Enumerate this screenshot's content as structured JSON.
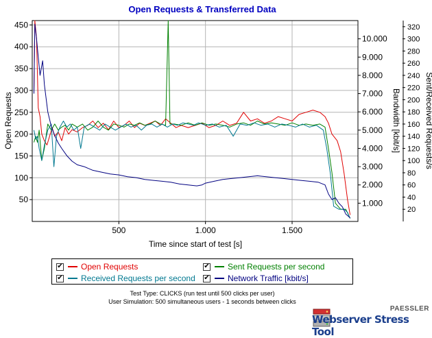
{
  "chart_data": {
    "type": "line",
    "title": "Open Requests & Transferred Data",
    "xlabel": "Time since start of test [s]",
    "ylabel_left": "Open Requests",
    "ylabel_right1": "Bandwidth [kbit/s]",
    "ylabel_right2": "Sent/Received Requests/s",
    "xlim": [
      0,
      1880
    ],
    "ylim_left": [
      0,
      460
    ],
    "ylim_right1": [
      0,
      11000
    ],
    "ylim_right2": [
      0,
      330
    ],
    "x_ticks": [
      {
        "value": 500,
        "label": "500"
      },
      {
        "value": 1000,
        "label": "1.000"
      },
      {
        "value": 1500,
        "label": "1.500"
      }
    ],
    "y_left_ticks": [
      {
        "value": 50,
        "label": "50"
      },
      {
        "value": 100,
        "label": "100"
      },
      {
        "value": 150,
        "label": "150"
      },
      {
        "value": 200,
        "label": "200"
      },
      {
        "value": 250,
        "label": "250"
      },
      {
        "value": 300,
        "label": "300"
      },
      {
        "value": 350,
        "label": "350"
      },
      {
        "value": 400,
        "label": "400"
      },
      {
        "value": 450,
        "label": "450"
      }
    ],
    "y_right1_ticks": [
      {
        "value": 1000,
        "label": "1.000"
      },
      {
        "value": 2000,
        "label": "2.000"
      },
      {
        "value": 3000,
        "label": "3.000"
      },
      {
        "value": 4000,
        "label": "4.000"
      },
      {
        "value": 5000,
        "label": "5.000"
      },
      {
        "value": 6000,
        "label": "6.000"
      },
      {
        "value": 7000,
        "label": "7.000"
      },
      {
        "value": 8000,
        "label": "8.000"
      },
      {
        "value": 9000,
        "label": "9.000"
      },
      {
        "value": 10000,
        "label": "10.000"
      }
    ],
    "y_right2_ticks": [
      {
        "value": 20,
        "label": "20"
      },
      {
        "value": 40,
        "label": "40"
      },
      {
        "value": 60,
        "label": "60"
      },
      {
        "value": 80,
        "label": "80"
      },
      {
        "value": 100,
        "label": "100"
      },
      {
        "value": 120,
        "label": "120"
      },
      {
        "value": 140,
        "label": "140"
      },
      {
        "value": 160,
        "label": "160"
      },
      {
        "value": 180,
        "label": "180"
      },
      {
        "value": 200,
        "label": "200"
      },
      {
        "value": 220,
        "label": "220"
      },
      {
        "value": 240,
        "label": "240"
      },
      {
        "value": 260,
        "label": "260"
      },
      {
        "value": 280,
        "label": "280"
      },
      {
        "value": 300,
        "label": "300"
      },
      {
        "value": 320,
        "label": "320"
      }
    ],
    "grid": true,
    "series": [
      {
        "name": "Open Requests",
        "axis": "left",
        "color": "#e00000",
        "points": [
          [
            10,
            300
          ],
          [
            15,
            460
          ],
          [
            25,
            420
          ],
          [
            35,
            260
          ],
          [
            45,
            240
          ],
          [
            55,
            200
          ],
          [
            70,
            185
          ],
          [
            85,
            175
          ],
          [
            100,
            195
          ],
          [
            115,
            215
          ],
          [
            130,
            195
          ],
          [
            150,
            205
          ],
          [
            170,
            185
          ],
          [
            190,
            215
          ],
          [
            210,
            200
          ],
          [
            230,
            210
          ],
          [
            260,
            205
          ],
          [
            290,
            215
          ],
          [
            320,
            220
          ],
          [
            350,
            230
          ],
          [
            380,
            215
          ],
          [
            410,
            225
          ],
          [
            440,
            210
          ],
          [
            470,
            230
          ],
          [
            500,
            215
          ],
          [
            530,
            220
          ],
          [
            560,
            230
          ],
          [
            590,
            215
          ],
          [
            620,
            225
          ],
          [
            650,
            220
          ],
          [
            680,
            225
          ],
          [
            710,
            230
          ],
          [
            740,
            220
          ],
          [
            770,
            235
          ],
          [
            800,
            225
          ],
          [
            830,
            215
          ],
          [
            860,
            220
          ],
          [
            900,
            215
          ],
          [
            940,
            220
          ],
          [
            980,
            225
          ],
          [
            1020,
            215
          ],
          [
            1060,
            220
          ],
          [
            1100,
            230
          ],
          [
            1140,
            220
          ],
          [
            1180,
            225
          ],
          [
            1220,
            250
          ],
          [
            1260,
            230
          ],
          [
            1300,
            235
          ],
          [
            1340,
            225
          ],
          [
            1380,
            230
          ],
          [
            1420,
            240
          ],
          [
            1460,
            235
          ],
          [
            1500,
            230
          ],
          [
            1540,
            245
          ],
          [
            1580,
            250
          ],
          [
            1620,
            255
          ],
          [
            1660,
            250
          ],
          [
            1690,
            240
          ],
          [
            1710,
            225
          ],
          [
            1730,
            200
          ],
          [
            1760,
            185
          ],
          [
            1780,
            160
          ],
          [
            1800,
            110
          ],
          [
            1820,
            50
          ],
          [
            1835,
            15
          ]
        ]
      },
      {
        "name": "Sent Requests per second",
        "axis": "right2",
        "color": "#008000",
        "points": [
          [
            10,
            130
          ],
          [
            20,
            140
          ],
          [
            30,
            130
          ],
          [
            40,
            150
          ],
          [
            55,
            100
          ],
          [
            70,
            120
          ],
          [
            90,
            160
          ],
          [
            110,
            150
          ],
          [
            130,
            160
          ],
          [
            150,
            150
          ],
          [
            170,
            155
          ],
          [
            190,
            158
          ],
          [
            210,
            150
          ],
          [
            230,
            160
          ],
          [
            260,
            155
          ],
          [
            290,
            160
          ],
          [
            320,
            150
          ],
          [
            350,
            155
          ],
          [
            380,
            165
          ],
          [
            410,
            155
          ],
          [
            440,
            150
          ],
          [
            470,
            160
          ],
          [
            500,
            158
          ],
          [
            530,
            155
          ],
          [
            560,
            160
          ],
          [
            590,
            158
          ],
          [
            620,
            162
          ],
          [
            650,
            158
          ],
          [
            680,
            160
          ],
          [
            710,
            165
          ],
          [
            740,
            160
          ],
          [
            770,
            158
          ],
          [
            785,
            330
          ],
          [
            795,
            160
          ],
          [
            820,
            160
          ],
          [
            860,
            158
          ],
          [
            900,
            162
          ],
          [
            940,
            158
          ],
          [
            980,
            162
          ],
          [
            1020,
            158
          ],
          [
            1060,
            160
          ],
          [
            1100,
            158
          ],
          [
            1140,
            155
          ],
          [
            1180,
            160
          ],
          [
            1220,
            162
          ],
          [
            1260,
            158
          ],
          [
            1300,
            165
          ],
          [
            1340,
            160
          ],
          [
            1380,
            162
          ],
          [
            1420,
            160
          ],
          [
            1460,
            158
          ],
          [
            1500,
            162
          ],
          [
            1540,
            158
          ],
          [
            1580,
            160
          ],
          [
            1620,
            158
          ],
          [
            1660,
            160
          ],
          [
            1690,
            155
          ],
          [
            1710,
            120
          ],
          [
            1730,
            80
          ],
          [
            1750,
            30
          ],
          [
            1780,
            20
          ],
          [
            1810,
            20
          ],
          [
            1835,
            5
          ]
        ]
      },
      {
        "name": "Received Requests per second",
        "axis": "right2",
        "color": "#007890",
        "points": [
          [
            10,
            150
          ],
          [
            20,
            135
          ],
          [
            30,
            140
          ],
          [
            40,
            120
          ],
          [
            55,
            100
          ],
          [
            70,
            125
          ],
          [
            90,
            150
          ],
          [
            110,
            160
          ],
          [
            125,
            90
          ],
          [
            140,
            140
          ],
          [
            160,
            155
          ],
          [
            180,
            165
          ],
          [
            200,
            155
          ],
          [
            220,
            160
          ],
          [
            240,
            150
          ],
          [
            260,
            155
          ],
          [
            280,
            120
          ],
          [
            300,
            155
          ],
          [
            330,
            160
          ],
          [
            360,
            155
          ],
          [
            390,
            150
          ],
          [
            420,
            160
          ],
          [
            450,
            155
          ],
          [
            480,
            150
          ],
          [
            510,
            155
          ],
          [
            540,
            160
          ],
          [
            570,
            155
          ],
          [
            600,
            158
          ],
          [
            630,
            150
          ],
          [
            660,
            158
          ],
          [
            690,
            160
          ],
          [
            720,
            155
          ],
          [
            750,
            160
          ],
          [
            780,
            155
          ],
          [
            810,
            160
          ],
          [
            840,
            158
          ],
          [
            870,
            162
          ],
          [
            900,
            160
          ],
          [
            930,
            158
          ],
          [
            960,
            162
          ],
          [
            1000,
            158
          ],
          [
            1040,
            160
          ],
          [
            1080,
            155
          ],
          [
            1120,
            158
          ],
          [
            1160,
            140
          ],
          [
            1200,
            160
          ],
          [
            1240,
            158
          ],
          [
            1280,
            162
          ],
          [
            1320,
            158
          ],
          [
            1360,
            160
          ],
          [
            1400,
            155
          ],
          [
            1440,
            160
          ],
          [
            1480,
            158
          ],
          [
            1520,
            155
          ],
          [
            1560,
            160
          ],
          [
            1600,
            155
          ],
          [
            1640,
            158
          ],
          [
            1680,
            150
          ],
          [
            1700,
            120
          ],
          [
            1720,
            80
          ],
          [
            1740,
            25
          ],
          [
            1770,
            20
          ],
          [
            1800,
            20
          ],
          [
            1820,
            15
          ],
          [
            1835,
            5
          ]
        ]
      },
      {
        "name": "Network Traffic [kbit/s]",
        "axis": "right1",
        "color": "#000080",
        "points": [
          [
            10,
            7000
          ],
          [
            15,
            10800
          ],
          [
            25,
            10000
          ],
          [
            35,
            9000
          ],
          [
            45,
            8000
          ],
          [
            60,
            8800
          ],
          [
            70,
            7500
          ],
          [
            90,
            6000
          ],
          [
            110,
            5200
          ],
          [
            130,
            4700
          ],
          [
            150,
            4300
          ],
          [
            170,
            4000
          ],
          [
            200,
            3600
          ],
          [
            230,
            3300
          ],
          [
            260,
            3100
          ],
          [
            300,
            3000
          ],
          [
            350,
            2800
          ],
          [
            400,
            2700
          ],
          [
            450,
            2600
          ],
          [
            500,
            2550
          ],
          [
            550,
            2450
          ],
          [
            600,
            2400
          ],
          [
            650,
            2300
          ],
          [
            700,
            2250
          ],
          [
            750,
            2200
          ],
          [
            800,
            2150
          ],
          [
            850,
            2050
          ],
          [
            900,
            2000
          ],
          [
            950,
            1950
          ],
          [
            980,
            2000
          ],
          [
            1000,
            2100
          ],
          [
            1050,
            2200
          ],
          [
            1100,
            2300
          ],
          [
            1150,
            2350
          ],
          [
            1200,
            2400
          ],
          [
            1250,
            2450
          ],
          [
            1300,
            2500
          ],
          [
            1350,
            2450
          ],
          [
            1400,
            2400
          ],
          [
            1450,
            2350
          ],
          [
            1500,
            2300
          ],
          [
            1550,
            2250
          ],
          [
            1600,
            2200
          ],
          [
            1650,
            2150
          ],
          [
            1690,
            2000
          ],
          [
            1710,
            1500
          ],
          [
            1730,
            1200
          ],
          [
            1750,
            1300
          ],
          [
            1770,
            1000
          ],
          [
            1790,
            800
          ],
          [
            1810,
            400
          ],
          [
            1835,
            200
          ]
        ]
      }
    ]
  },
  "legend": {
    "items": [
      {
        "label": "Open Requests",
        "checked": "✔",
        "color": "#e00000"
      },
      {
        "label": "Sent Requests per second",
        "checked": "✔",
        "color": "#008000"
      },
      {
        "label": "Received Requests per second",
        "checked": "✔",
        "color": "#007890"
      },
      {
        "label": "Network Traffic [kbit/s]",
        "checked": "✔",
        "color": "#000080"
      }
    ]
  },
  "info": {
    "line1": "Test Type: CLICKS (run test until 500 clicks per user)",
    "line2": "User Simulation: 500 simultaneous users - 1 seconds between clicks"
  },
  "brand": {
    "top": "PAESSLER",
    "main": "Webserver Stress Tool",
    "icon": "server-stack-icon"
  }
}
